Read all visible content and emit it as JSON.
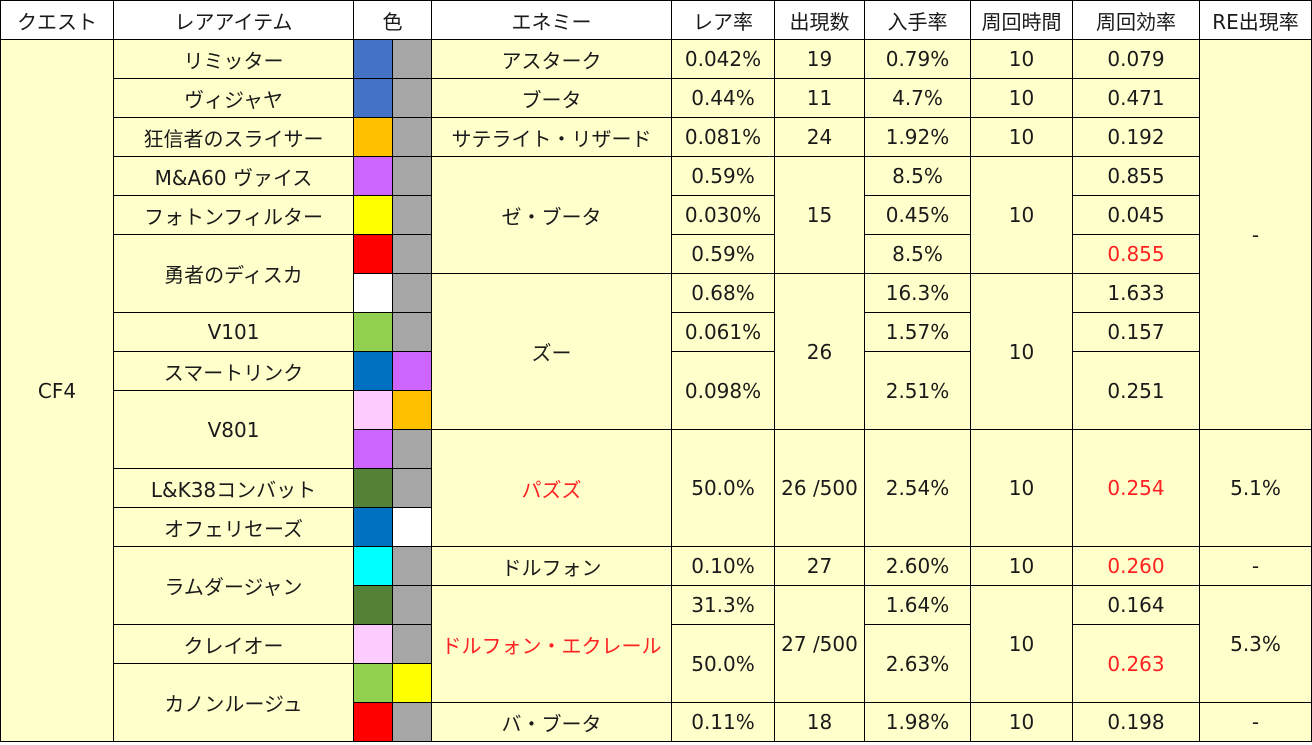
{
  "headers": [
    "クエスト",
    "レアアイテム",
    "色",
    "エネミー",
    "レア率",
    "出現数",
    "入手率",
    "周回時間",
    "周回効率",
    "RE出現率"
  ],
  "quest": "CF4",
  "items": {
    "limiter": "リミッター",
    "vijaya": "ヴィジャヤ",
    "slicer": "狂信者のスライサー",
    "ma60": "M&A60 ヴァイス",
    "photon_filter": "フォトンフィルター",
    "yusha_disc": "勇者のディスカ",
    "v101": "V101",
    "smart_link": "スマートリンク",
    "v801": "V801",
    "lk38": "L&K38コンバット",
    "ofelisage": "オフェリセーズ",
    "ramdarjan": "ラムダージャン",
    "cleio": "クレイオー",
    "canon_rouge": "カノンルージュ"
  },
  "enemies": {
    "astark": "アスターク",
    "booma": "ブータ",
    "satellite_lizard": "サテライト・リザード",
    "ze_booma": "ゼ・ブータ",
    "zu": "ズー",
    "pazuzu": "パズズ",
    "dolphon": "ドルフォン",
    "dolphon_eclair": "ドルフォン・エクレール",
    "ba_booma": "バ・ブータ"
  },
  "rare_rate": {
    "r1": "0.042%",
    "r2": "0.44%",
    "r3": "0.081%",
    "r4": "0.59%",
    "r5": "0.030%",
    "r6": "0.59%",
    "r7": "0.68%",
    "r8": "0.061%",
    "r9": "0.098%",
    "r10": "50.0%",
    "r11": "0.10%",
    "r12": "31.3%",
    "r13": "50.0%",
    "r14": "0.11%"
  },
  "appear": {
    "astark": "19",
    "booma": "11",
    "satellite": "24",
    "ze_booma": "15",
    "zu": "26",
    "pazuzu": "26 /500",
    "dolphon": "27",
    "eclair": "27 /500",
    "ba_booma": "18"
  },
  "obtain_rate": {
    "r1": "0.79%",
    "r2": "4.7%",
    "r3": "1.92%",
    "r4": "8.5%",
    "r5": "0.45%",
    "r6": "8.5%",
    "r7": "16.3%",
    "r8": "1.57%",
    "r9": "2.51%",
    "r10": "2.54%",
    "r11": "2.60%",
    "r12": "1.64%",
    "r13": "2.63%",
    "r14": "1.98%"
  },
  "loop_time": {
    "t1": "10",
    "t2": "10",
    "t3": "10",
    "t4": "10",
    "t5": "10",
    "t6": "10",
    "t7": "10",
    "t8": "10",
    "t9": "10"
  },
  "efficiency": {
    "e1": "0.079",
    "e2": "0.471",
    "e3": "0.192",
    "e4": "0.855",
    "e5": "0.045",
    "e6": "0.855",
    "e7": "1.633",
    "e8": "0.157",
    "e9": "0.251",
    "e10": "0.254",
    "e11": "0.260",
    "e12": "0.164",
    "e13": "0.263",
    "e14": "0.198"
  },
  "re_rate": {
    "a": "-",
    "b": "5.1%",
    "c": "-",
    "d": "5.3%",
    "e": "-"
  },
  "colors": {
    "cell_bg": "#ffffcc",
    "highlight_text": "#ff2222",
    "blue": "#4472c4",
    "gray": "#a6a6a6",
    "orange": "#ffc000",
    "purple": "#cc66ff",
    "yellow": "#ffff00",
    "red": "#ff0000",
    "white": "#ffffff",
    "light_green": "#92d050",
    "dark_blue": "#0070c0",
    "pink": "#ffccff",
    "dark_green": "#538135",
    "cyan": "#00ffff"
  }
}
